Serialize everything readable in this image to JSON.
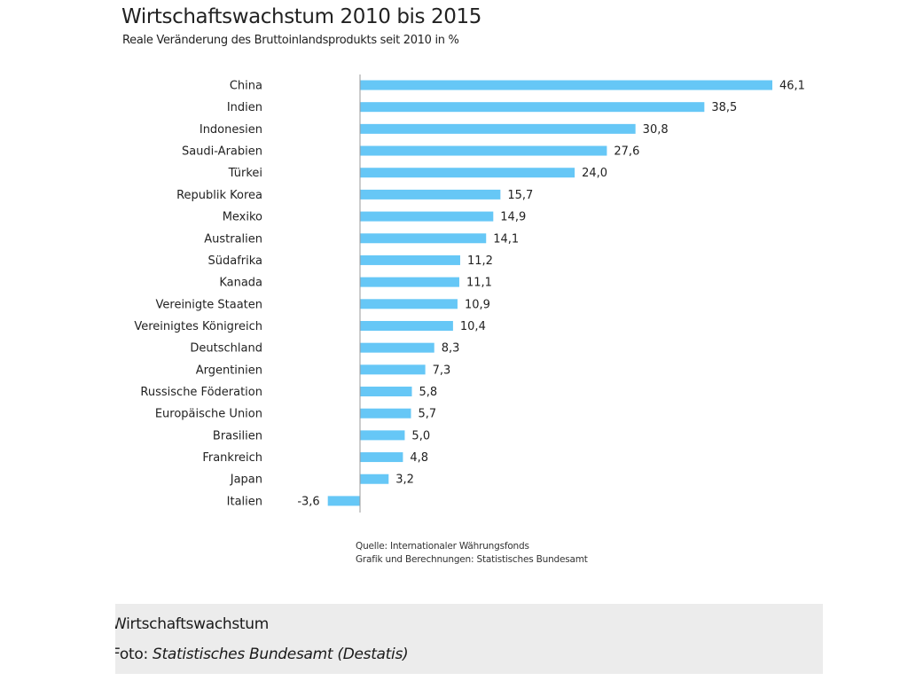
{
  "colors": {
    "bar": "#66c7f6",
    "axis": "#9a9a9a",
    "text": "#222222",
    "caption_background": "#ececec"
  },
  "chart_data": {
    "type": "bar",
    "orientation": "horizontal",
    "title": "Wirtschaftswachstum 2010 bis 2015",
    "subtitle": "Reale Veränderung des Bruttoinlandsprodukts seit 2010 in %",
    "categories": [
      "China",
      "Indien",
      "Indonesien",
      "Saudi-Arabien",
      "Türkei",
      "Republik Korea",
      "Mexiko",
      "Australien",
      "Südafrika",
      "Kanada",
      "Vereinigte Staaten",
      "Vereinigtes Königreich",
      "Deutschland",
      "Argentinien",
      "Russische Föderation",
      "Europäische Union",
      "Brasilien",
      "Frankreich",
      "Japan",
      "Italien"
    ],
    "values": [
      46.1,
      38.5,
      30.8,
      27.6,
      24.0,
      15.7,
      14.9,
      14.1,
      11.2,
      11.1,
      10.9,
      10.4,
      8.3,
      7.3,
      5.8,
      5.7,
      5.0,
      4.8,
      3.2,
      -3.6
    ],
    "value_labels": [
      "46,1",
      "38,5",
      "30,8",
      "27,6",
      "24,0",
      "15,7",
      "14,9",
      "14,1",
      "11,2",
      "11,1",
      "10,9",
      "10,4",
      "8,3",
      "7,3",
      "5,8",
      "5,7",
      "5,0",
      "4,8",
      "3,2",
      "-3,6"
    ],
    "xlabel": "",
    "ylabel": "",
    "xlim": [
      -3.6,
      46.1
    ],
    "grid": false,
    "legend": "none"
  },
  "source": {
    "line1": "Quelle: Internationaler Währungsfonds",
    "line2": "Grafik und Berechnungen: Statistisches Bundesamt"
  },
  "caption": {
    "title": "Wirtschaftswachstum",
    "credit_prefix": "Foto: ",
    "credit_source": "Statistisches Bundesamt (Destatis)"
  }
}
